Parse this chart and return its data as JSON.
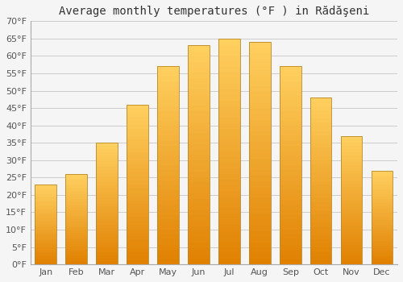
{
  "months": [
    "Jan",
    "Feb",
    "Mar",
    "Apr",
    "May",
    "Jun",
    "Jul",
    "Aug",
    "Sep",
    "Oct",
    "Nov",
    "Dec"
  ],
  "values": [
    23,
    26,
    35,
    46,
    57,
    63,
    65,
    64,
    57,
    48,
    37,
    27
  ],
  "title": "Average monthly temperatures (°F ) in Rădăşeni",
  "ylim": [
    0,
    70
  ],
  "yticks": [
    0,
    5,
    10,
    15,
    20,
    25,
    30,
    35,
    40,
    45,
    50,
    55,
    60,
    65,
    70
  ],
  "ytick_labels": [
    "0°F",
    "5°F",
    "10°F",
    "15°F",
    "20°F",
    "25°F",
    "30°F",
    "35°F",
    "40°F",
    "45°F",
    "50°F",
    "55°F",
    "60°F",
    "65°F",
    "70°F"
  ],
  "bar_color_main": "#FFA500",
  "bar_color_light": "#FFD060",
  "bar_color_dark": "#E08000",
  "bar_edge_color": "#B8882A",
  "background_color": "#f5f5f5",
  "plot_bg_color": "#f5f5f5",
  "grid_color": "#cccccc",
  "title_fontsize": 10,
  "tick_fontsize": 8,
  "title_color": "#333333",
  "tick_color": "#555555"
}
